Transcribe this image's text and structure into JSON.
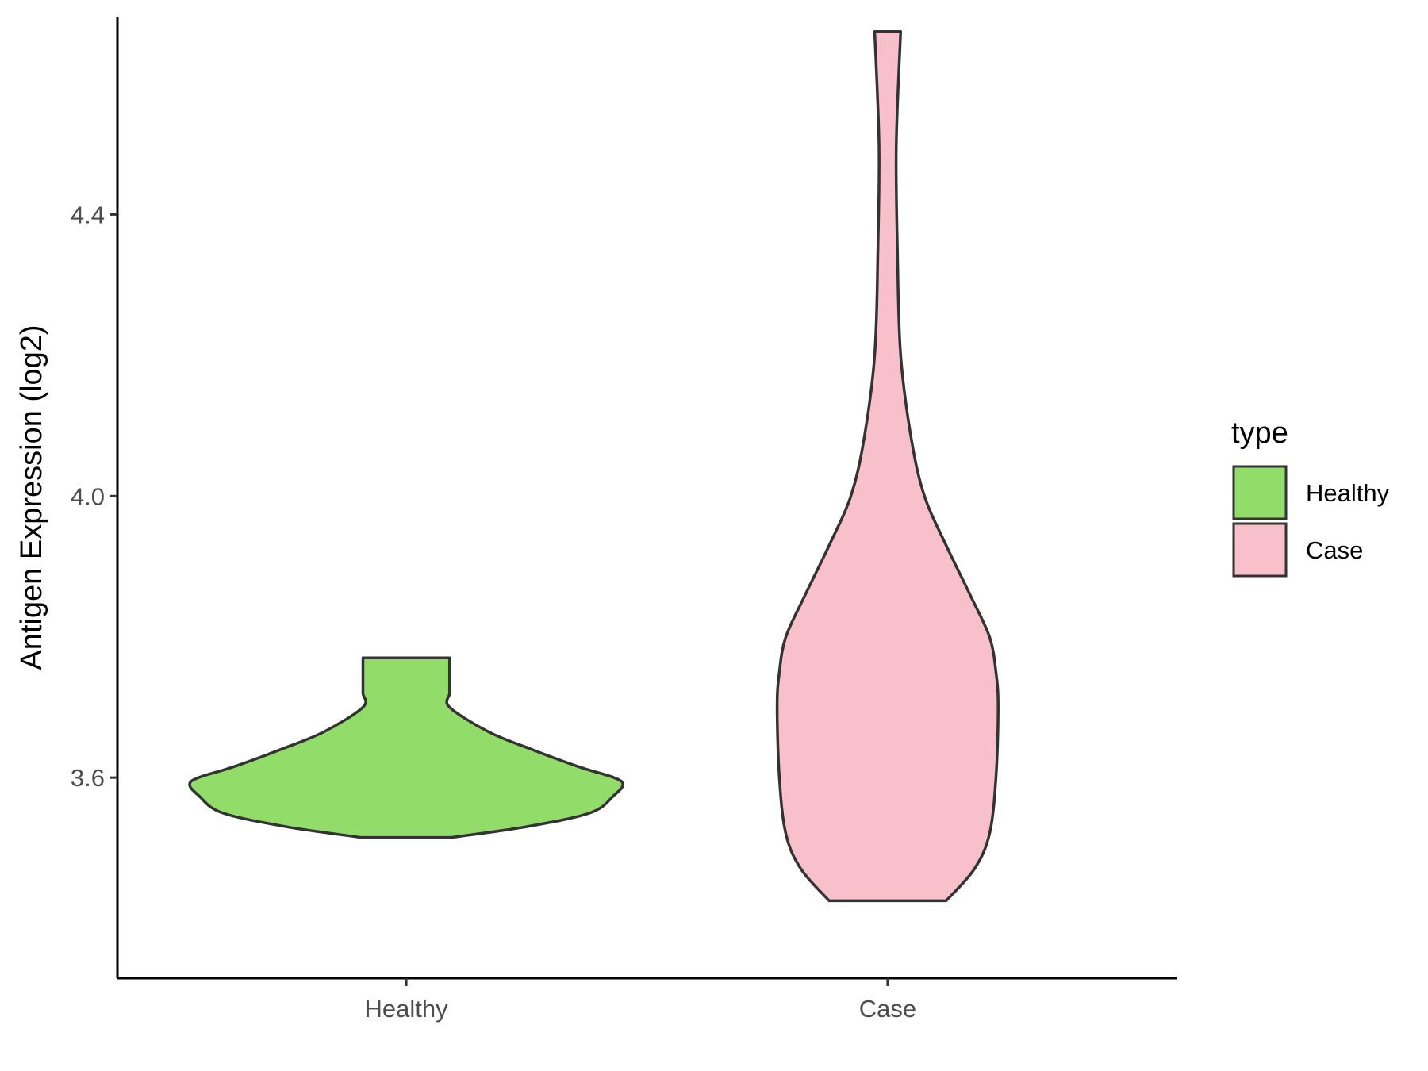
{
  "chart_data": {
    "type": "violin",
    "ylabel": "Antigen Expression (log2)",
    "xlabel": "",
    "categories": [
      "Healthy",
      "Case"
    ],
    "ylim": [
      3.315,
      4.68
    ],
    "yticks": [
      3.6,
      4.0,
      4.4
    ],
    "ytick_labels": [
      "3.6",
      "4.0",
      "4.4"
    ],
    "grid": false,
    "legend": {
      "title": "type",
      "position": "right",
      "entries": [
        {
          "label": "Healthy",
          "color": "#92dc6a"
        },
        {
          "label": "Case",
          "color": "#f7c0cb"
        }
      ]
    },
    "series": [
      {
        "name": "Healthy",
        "color": "#92dc6a",
        "min": 3.515,
        "max": 3.77,
        "density": [
          [
            3.515,
            0.21
          ],
          [
            3.53,
            0.55
          ],
          [
            3.55,
            0.85
          ],
          [
            3.575,
            0.96
          ],
          [
            3.59,
            1.0
          ],
          [
            3.6,
            0.96
          ],
          [
            3.615,
            0.8
          ],
          [
            3.64,
            0.58
          ],
          [
            3.665,
            0.38
          ],
          [
            3.7,
            0.2
          ],
          [
            3.72,
            0.2
          ],
          [
            3.74,
            0.2
          ],
          [
            3.77,
            0.2
          ]
        ]
      },
      {
        "name": "Case",
        "color": "#f7c0cb",
        "min": 3.425,
        "max": 4.66,
        "density": [
          [
            3.425,
            0.27
          ],
          [
            3.47,
            0.4
          ],
          [
            3.52,
            0.47
          ],
          [
            3.6,
            0.5
          ],
          [
            3.7,
            0.51
          ],
          [
            3.75,
            0.5
          ],
          [
            3.8,
            0.47
          ],
          [
            3.86,
            0.38
          ],
          [
            3.93,
            0.27
          ],
          [
            4.0,
            0.17
          ],
          [
            4.08,
            0.11
          ],
          [
            4.2,
            0.06
          ],
          [
            4.35,
            0.045
          ],
          [
            4.5,
            0.04
          ],
          [
            4.66,
            0.06
          ]
        ]
      }
    ]
  }
}
